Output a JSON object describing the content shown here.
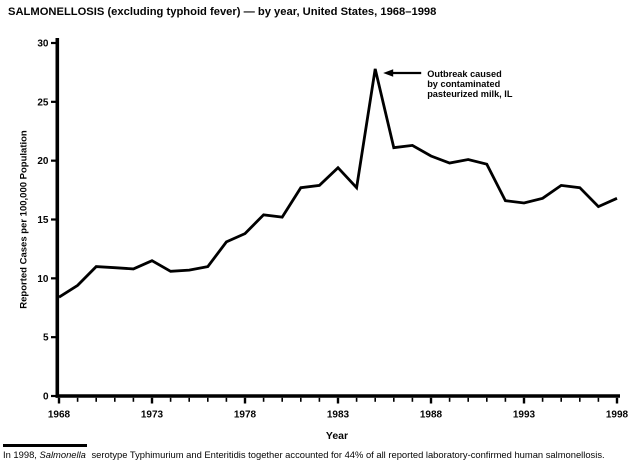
{
  "page": {
    "title": "SALMONELLOSIS (excluding typhoid fever) — by year, United States, 1968–1998",
    "footnote": {
      "prefix": "In 1998, ",
      "italic": "Salmonella",
      "rest": " serotype Typhimurium and Enteritidis together accounted for 44% of all reported laboratory-confirmed human salmonellosis."
    }
  },
  "chart_data": {
    "type": "line",
    "title": "SALMONELLOSIS (excluding typhoid fever) — by year, United States, 1968–1998",
    "xlabel": "Year",
    "ylabel": "Reported Cases per 100,000 Population",
    "xlim": [
      1968,
      1998
    ],
    "ylim": [
      0,
      30
    ],
    "yticks": [
      0,
      5,
      10,
      15,
      20,
      25,
      30
    ],
    "xticks": [
      1968,
      1973,
      1978,
      1983,
      1988,
      1993,
      1998
    ],
    "grid": false,
    "legend": "none",
    "line_color": "#000000",
    "x": [
      1968,
      1969,
      1970,
      1971,
      1972,
      1973,
      1974,
      1975,
      1976,
      1977,
      1978,
      1979,
      1980,
      1981,
      1982,
      1983,
      1984,
      1985,
      1986,
      1987,
      1988,
      1989,
      1990,
      1991,
      1992,
      1993,
      1994,
      1995,
      1996,
      1997,
      1998
    ],
    "values": [
      8.4,
      9.4,
      11.0,
      10.9,
      10.8,
      11.5,
      10.6,
      10.7,
      11.0,
      13.1,
      13.8,
      15.4,
      15.2,
      17.7,
      17.9,
      19.4,
      17.7,
      27.8,
      21.1,
      21.3,
      20.4,
      19.8,
      20.1,
      19.7,
      16.6,
      16.4,
      16.8,
      17.9,
      17.7,
      16.1,
      16.8
    ],
    "annotation": {
      "lines": [
        "Outbreak caused",
        "by contaminated",
        "pasteurized milk, IL"
      ],
      "target_year": 1985,
      "target_value": 27.8,
      "arrow_direction": "left"
    }
  }
}
